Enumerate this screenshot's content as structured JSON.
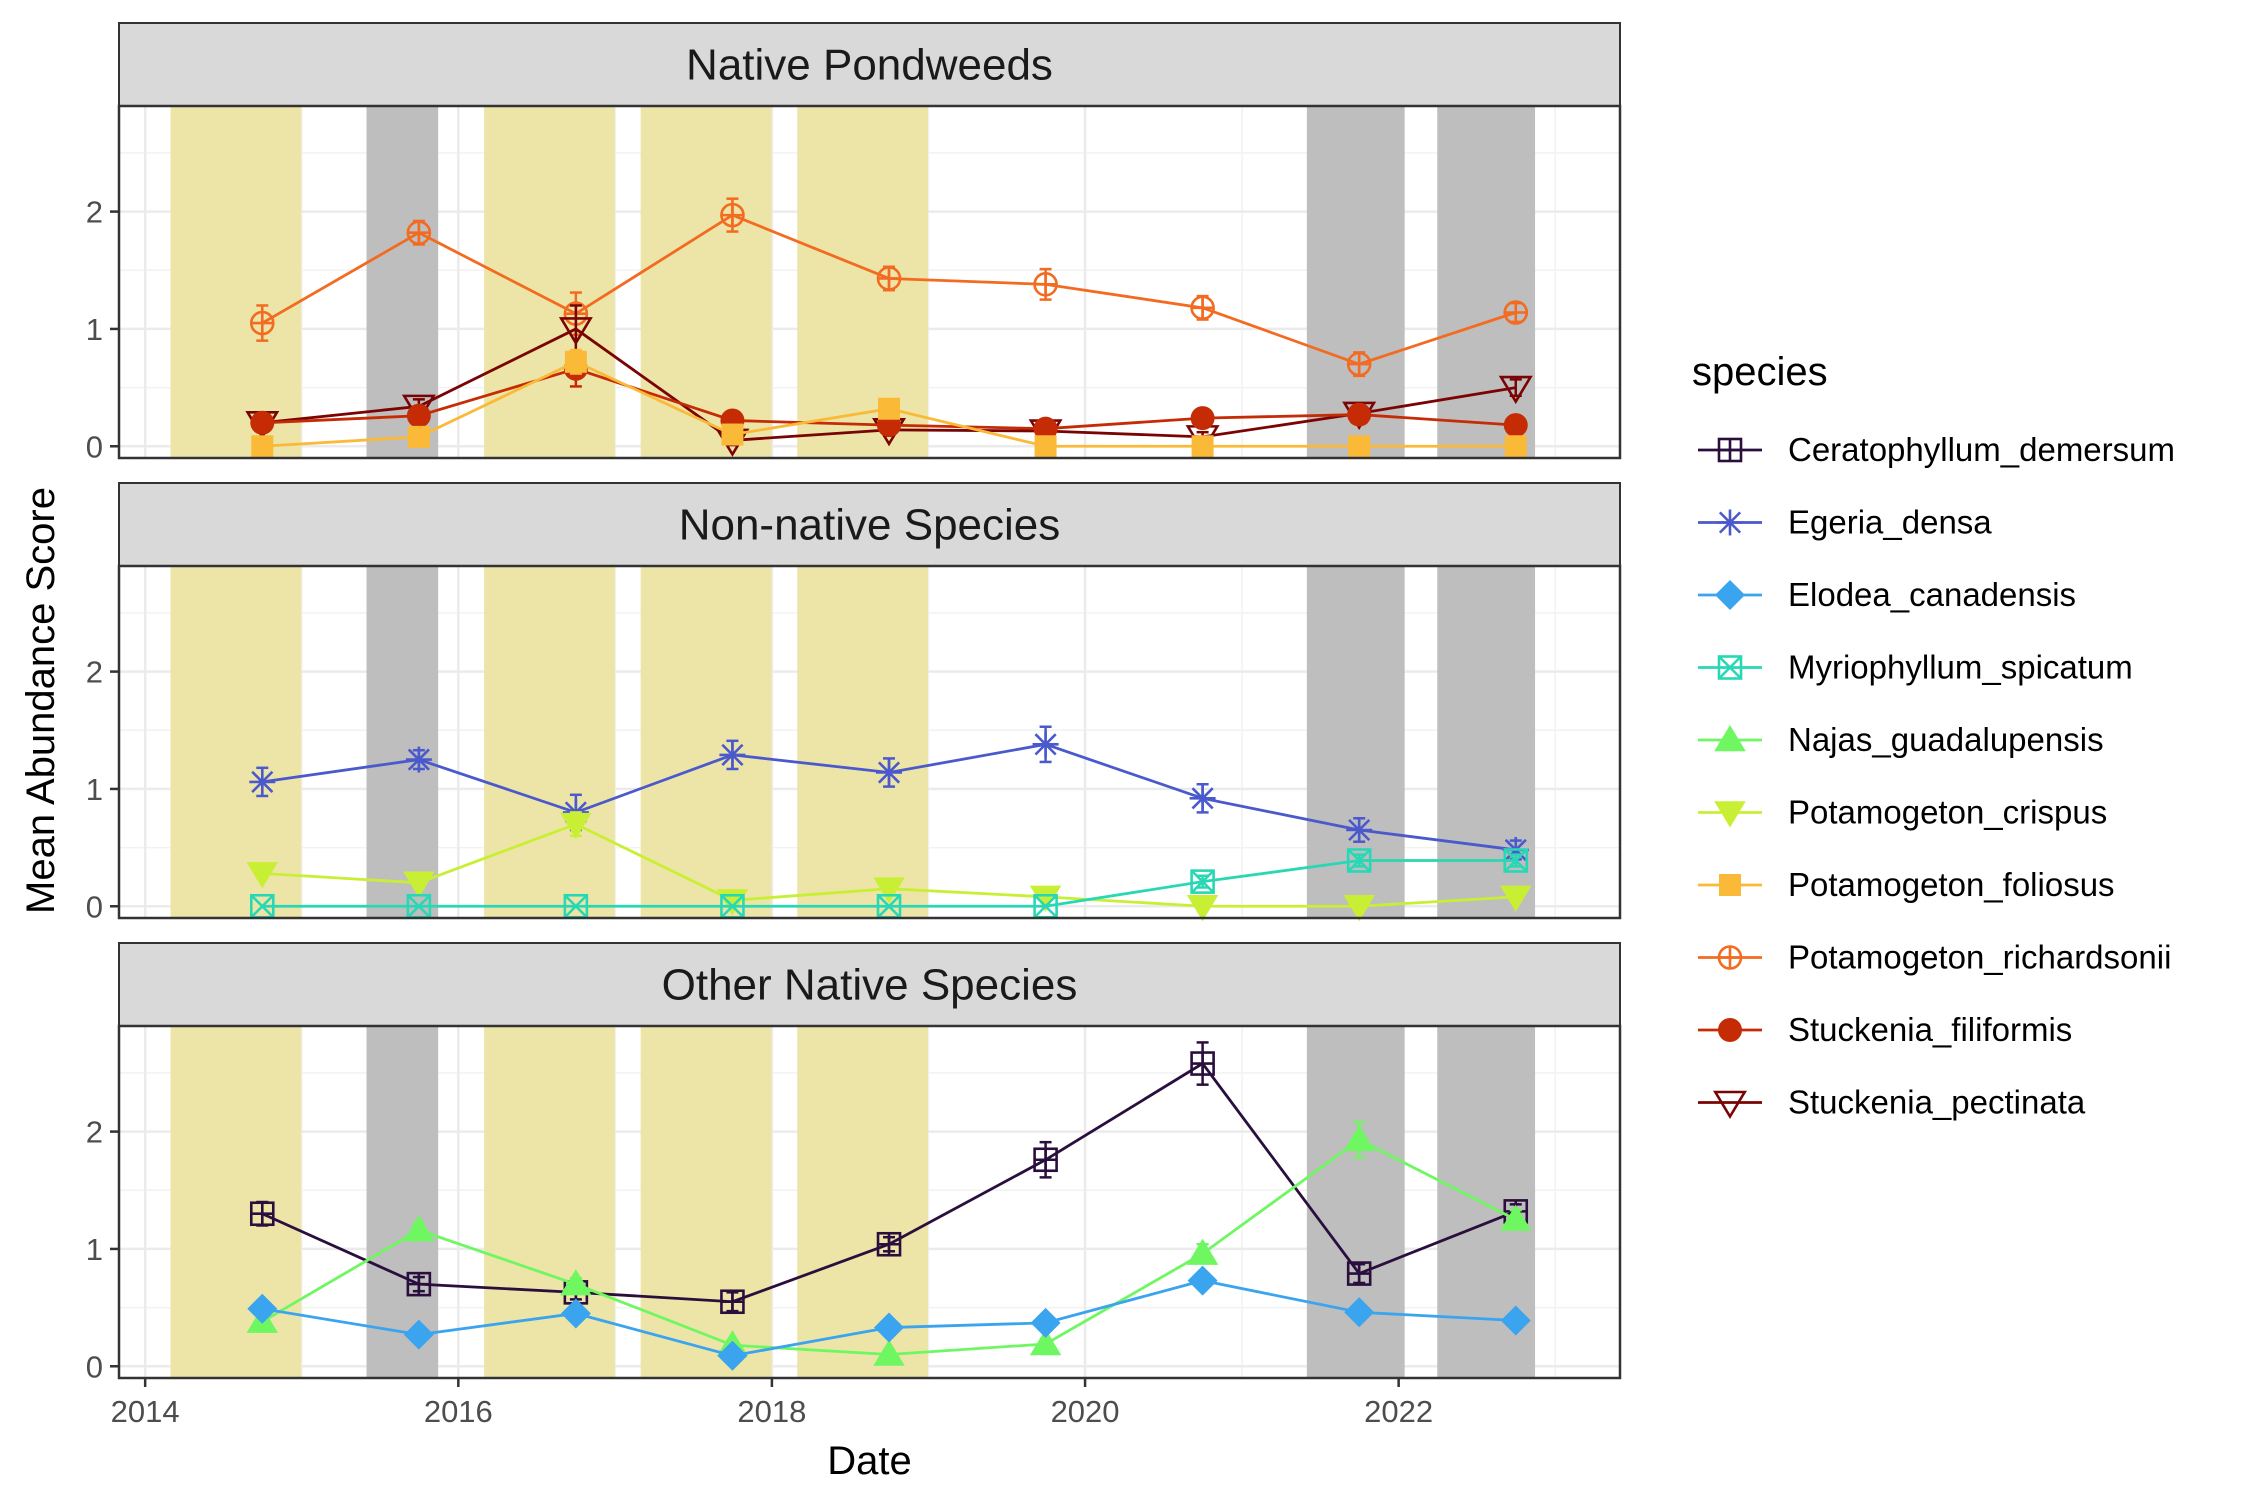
{
  "chart_data": {
    "type": "line",
    "xlabel": "Date",
    "ylabel": "Mean Abundance Score",
    "xlim": [
      "2013-11-01",
      "2023-06-01"
    ],
    "ylim": [
      -0.1,
      2.9
    ],
    "x_ticks": [
      {
        "date": "2014-01-01",
        "label": "2014"
      },
      {
        "date": "2016-01-01",
        "label": "2016"
      },
      {
        "date": "2018-01-01",
        "label": "2018"
      },
      {
        "date": "2020-01-01",
        "label": "2020"
      },
      {
        "date": "2022-01-01",
        "label": "2022"
      }
    ],
    "y_ticks": [
      {
        "value": 0,
        "label": "0"
      },
      {
        "value": 1,
        "label": "1"
      },
      {
        "value": 2,
        "label": "2"
      }
    ],
    "grid": true,
    "legend_position": "right",
    "legend_title": "species",
    "shaded_periods": [
      {
        "start": "2014-03-01",
        "end": "2014-12-31",
        "color": "#ede5a8"
      },
      {
        "start": "2015-06-01",
        "end": "2015-11-15",
        "color": "#bebebe"
      },
      {
        "start": "2016-03-01",
        "end": "2016-12-31",
        "color": "#ede5a8"
      },
      {
        "start": "2017-03-01",
        "end": "2017-12-31",
        "color": "#ede5a8"
      },
      {
        "start": "2018-03-01",
        "end": "2018-12-31",
        "color": "#ede5a8"
      },
      {
        "start": "2021-06-01",
        "end": "2022-01-15",
        "color": "#bebebe"
      },
      {
        "start": "2022-04-01",
        "end": "2022-11-15",
        "color": "#bebebe"
      }
    ],
    "dates": [
      "2014-10-01",
      "2015-10-01",
      "2016-10-01",
      "2017-10-01",
      "2018-10-01",
      "2019-10-01",
      "2020-10-01",
      "2021-10-01",
      "2022-10-01"
    ],
    "species": [
      {
        "name": "Ceratophyllum_demersum",
        "color": "#2a0f3e",
        "shape": "square-plus"
      },
      {
        "name": "Egeria_densa",
        "color": "#4a59cc",
        "shape": "asterisk"
      },
      {
        "name": "Elodea_canadensis",
        "color": "#3aa4ef",
        "shape": "diamond"
      },
      {
        "name": "Myriophyllum_spicatum",
        "color": "#28d8b4",
        "shape": "square-x"
      },
      {
        "name": "Najas_guadalupensis",
        "color": "#6ff762",
        "shape": "triangle-up"
      },
      {
        "name": "Potamogeton_crispus",
        "color": "#c9ef34",
        "shape": "triangle-down-filled"
      },
      {
        "name": "Potamogeton_foliosus",
        "color": "#fbb938",
        "shape": "square"
      },
      {
        "name": "Potamogeton_richardsonii",
        "color": "#f26b20",
        "shape": "circle-plus"
      },
      {
        "name": "Stuckenia_filiformis",
        "color": "#c52c05",
        "shape": "circle"
      },
      {
        "name": "Stuckenia_pectinata",
        "color": "#7a0403",
        "shape": "triangle-down-open"
      }
    ],
    "panels": [
      {
        "title": "Native Pondweeds",
        "series": [
          {
            "species": "Potamogeton_richardsonii",
            "values": [
              1.05,
              1.82,
              1.13,
              1.97,
              1.43,
              1.38,
              1.18,
              0.7,
              1.14
            ],
            "errors": [
              0.15,
              0.1,
              0.18,
              0.14,
              0.1,
              0.13,
              0.1,
              0.1,
              0.08
            ]
          },
          {
            "species": "Stuckenia_pectinata",
            "values": [
              0.2,
              0.34,
              1.0,
              0.05,
              0.14,
              0.13,
              0.08,
              0.28,
              0.5
            ],
            "errors": [
              0.05,
              0.06,
              0.2,
              0.04,
              0.05,
              0.05,
              0.04,
              0.06,
              0.07
            ]
          },
          {
            "species": "Stuckenia_filiformis",
            "values": [
              0.2,
              0.26,
              0.66,
              0.22,
              0.18,
              0.15,
              0.24,
              0.27,
              0.18
            ],
            "errors": [
              0.05,
              0.05,
              0.15,
              0.05,
              0.05,
              0.04,
              0.05,
              0.05,
              0.04
            ]
          },
          {
            "species": "Potamogeton_foliosus",
            "values": [
              0.0,
              0.08,
              0.72,
              0.1,
              0.32,
              0.0,
              0.0,
              0.0,
              0.0
            ],
            "errors": [
              0.0,
              0.03,
              0.1,
              0.03,
              0.05,
              0.0,
              0.0,
              0.0,
              0.0
            ]
          }
        ]
      },
      {
        "title": "Non-native Species",
        "series": [
          {
            "species": "Egeria_densa",
            "values": [
              1.06,
              1.25,
              0.8,
              1.29,
              1.14,
              1.38,
              0.92,
              0.65,
              0.48
            ],
            "errors": [
              0.12,
              0.08,
              0.15,
              0.12,
              0.12,
              0.15,
              0.12,
              0.1,
              0.08
            ]
          },
          {
            "species": "Potamogeton_crispus",
            "values": [
              0.28,
              0.2,
              0.7,
              0.05,
              0.15,
              0.08,
              0.0,
              0.0,
              0.08
            ],
            "errors": [
              0.04,
              0.04,
              0.1,
              0.03,
              0.04,
              0.03,
              0.0,
              0.0,
              0.03
            ]
          },
          {
            "species": "Myriophyllum_spicatum",
            "values": [
              0.0,
              0.0,
              0.0,
              0.0,
              0.0,
              0.0,
              0.21,
              0.39,
              0.39
            ],
            "errors": [
              0.0,
              0.0,
              0.0,
              0.0,
              0.0,
              0.0,
              0.05,
              0.05,
              0.05
            ]
          }
        ]
      },
      {
        "title": "Other Native Species",
        "series": [
          {
            "species": "Ceratophyllum_demersum",
            "values": [
              1.3,
              0.7,
              0.63,
              0.55,
              1.04,
              1.76,
              2.58,
              0.79,
              1.32
            ],
            "errors": [
              0.1,
              0.06,
              0.06,
              0.08,
              0.06,
              0.15,
              0.18,
              0.08,
              0.06
            ]
          },
          {
            "species": "Najas_guadalupensis",
            "values": [
              0.38,
              1.16,
              0.7,
              0.18,
              0.1,
              0.19,
              0.96,
              1.93,
              1.25
            ],
            "errors": [
              0.05,
              0.06,
              0.05,
              0.04,
              0.04,
              0.04,
              0.08,
              0.15,
              0.08
            ]
          },
          {
            "species": "Elodea_canadensis",
            "values": [
              0.49,
              0.27,
              0.45,
              0.09,
              0.33,
              0.37,
              0.73,
              0.46,
              0.39
            ],
            "errors": [
              0.04,
              0.03,
              0.04,
              0.03,
              0.03,
              0.03,
              0.05,
              0.04,
              0.03
            ]
          }
        ]
      }
    ]
  }
}
